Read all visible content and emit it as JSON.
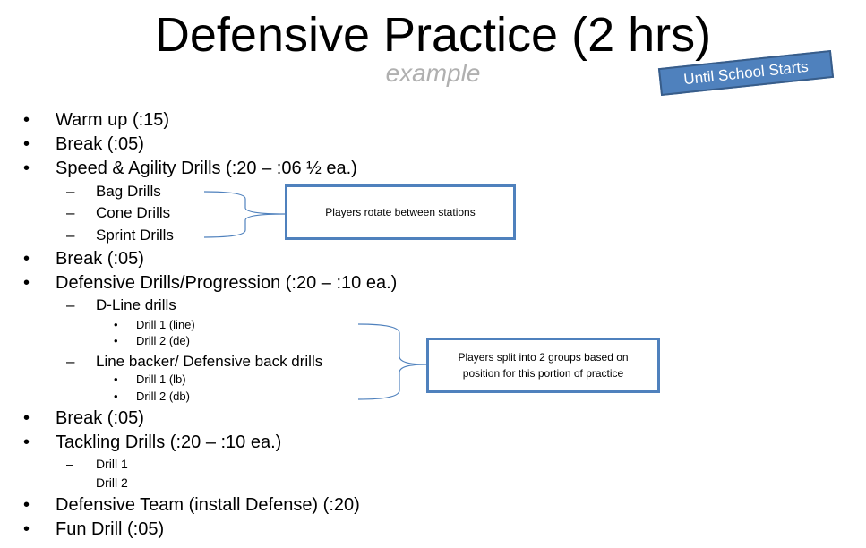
{
  "title": "Defensive Practice (2 hrs)",
  "subtitle": "example",
  "badge": "Until School Starts",
  "accent_color": "#4f81bd",
  "items": [
    {
      "level": 1,
      "text": "Warm up (:15)"
    },
    {
      "level": 1,
      "text": "Break  (:05)"
    },
    {
      "level": 1,
      "text": "Speed & Agility Drills (:20 – :06 ½  ea.)"
    },
    {
      "level": 2,
      "text": "Bag Drills"
    },
    {
      "level": 2,
      "text": "Cone Drills"
    },
    {
      "level": 2,
      "text": "Sprint Drills"
    },
    {
      "level": 1,
      "text": "Break (:05)"
    },
    {
      "level": 1,
      "text": "Defensive Drills/Progression (:20 – :10 ea.)"
    },
    {
      "level": 2,
      "text": "D-Line drills"
    },
    {
      "level": 3,
      "text": "Drill 1 (line)"
    },
    {
      "level": 3,
      "text": "Drill 2 (de)"
    },
    {
      "level": 2,
      "text": "Line backer/ Defensive back drills"
    },
    {
      "level": 3,
      "text": "Drill 1 (lb)"
    },
    {
      "level": 3,
      "text": "Drill 2 (db)"
    },
    {
      "level": 1,
      "text": "Break (:05)"
    },
    {
      "level": 1,
      "text": "Tackling Drills (:20 – :10 ea.)"
    },
    {
      "level": 2,
      "text": "Drill 1"
    },
    {
      "level": 2,
      "text": "Drill 2"
    },
    {
      "level": 1,
      "text": "Defensive Team (install Defense)  (:20)"
    },
    {
      "level": 1,
      "text": "Fun Drill (:05)"
    }
  ],
  "callouts": [
    "Players rotate between stations",
    "Players split into 2 groups based on position for this portion of practice"
  ]
}
